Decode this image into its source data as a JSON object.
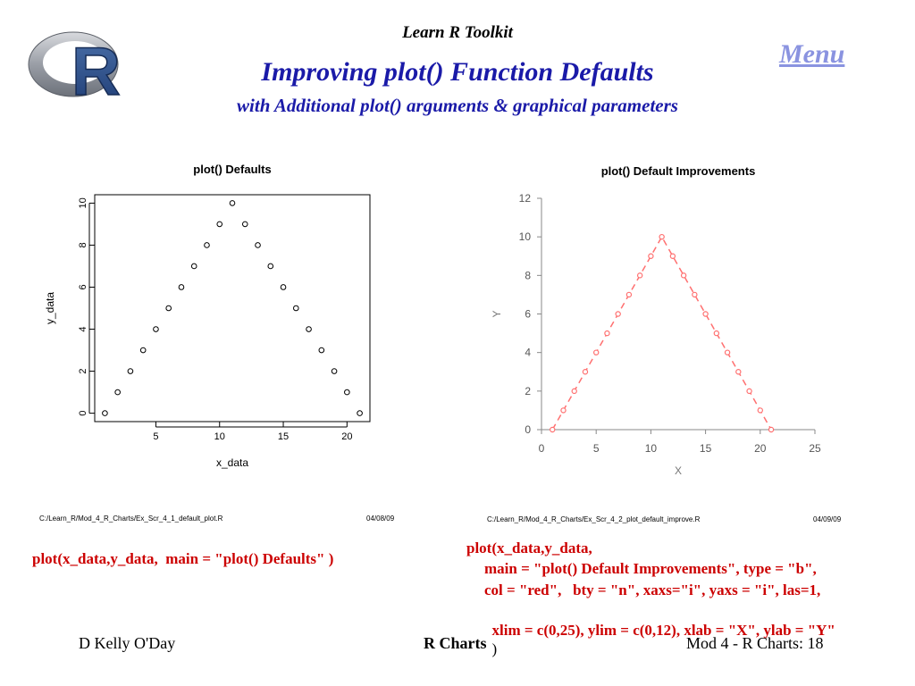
{
  "header": {
    "toolkit": "Learn R Toolkit",
    "title": "Improving plot() Function Defaults",
    "subtitle": "with Additional plot() arguments & graphical parameters",
    "menu_label": "Menu",
    "logo_letter": "R"
  },
  "colors": {
    "title": "#1a1aa8",
    "menu": "#8a93e0",
    "code": "#cc0000",
    "series_right": "#ff7070"
  },
  "left_plot": {
    "file_path": "C:/Learn_R/Mod_4_R_Charts/Ex_Scr_4_1_default_plot.R",
    "date": "04/08/09"
  },
  "right_plot": {
    "file_path": "C:/Learn_R/Mod_4_R_Charts/Ex_Scr_4_2_plot_default_improve.R",
    "date": "04/09/09"
  },
  "code": {
    "left": "plot(x_data,y_data,  main = \"plot() Defaults\" )",
    "right_line1": "plot(x_data,y_data,",
    "right_line2": "main = \"plot() Default Improvements\", type = \"b\",",
    "right_line3": "col = \"red\",   bty = \"n\", xaxs=\"i\", yaxs = \"i\", las=1,",
    "right_line4": "xlim = c(0,25), ylim = c(0,12), xlab = \"X\", ylab = \"Y\"",
    "right_line4_close": ")"
  },
  "footer": {
    "author": "D Kelly O'Day",
    "center": "R Charts",
    "page": "Mod 4 - R Charts: 18"
  },
  "chart_data": [
    {
      "type": "scatter",
      "title": "plot() Defaults",
      "xlabel": "x_data",
      "ylabel": "y_data",
      "xlim": [
        1,
        21
      ],
      "ylim": [
        0,
        10
      ],
      "x_ticks": [
        5,
        10,
        15,
        20
      ],
      "y_ticks": [
        0,
        2,
        4,
        6,
        8,
        10
      ],
      "x": [
        1,
        2,
        3,
        4,
        5,
        6,
        7,
        8,
        9,
        10,
        11,
        12,
        13,
        14,
        15,
        16,
        17,
        18,
        19,
        20,
        21
      ],
      "y": [
        0,
        1,
        2,
        3,
        4,
        5,
        6,
        7,
        8,
        9,
        10,
        9,
        8,
        7,
        6,
        5,
        4,
        3,
        2,
        1,
        0
      ],
      "color": "#000000",
      "box": true
    },
    {
      "type": "line",
      "title": "plot() Default Improvements",
      "xlabel": "X",
      "ylabel": "Y",
      "xlim": [
        0,
        25
      ],
      "ylim": [
        0,
        12
      ],
      "x_ticks": [
        0,
        5,
        10,
        15,
        20,
        25
      ],
      "y_ticks": [
        0,
        2,
        4,
        6,
        8,
        10,
        12
      ],
      "x": [
        1,
        2,
        3,
        4,
        5,
        6,
        7,
        8,
        9,
        10,
        11,
        12,
        13,
        14,
        15,
        16,
        17,
        18,
        19,
        20,
        21
      ],
      "y": [
        0,
        1,
        2,
        3,
        4,
        5,
        6,
        7,
        8,
        9,
        10,
        9,
        8,
        7,
        6,
        5,
        4,
        3,
        2,
        1,
        0
      ],
      "color": "#ff7070",
      "box": false
    }
  ]
}
